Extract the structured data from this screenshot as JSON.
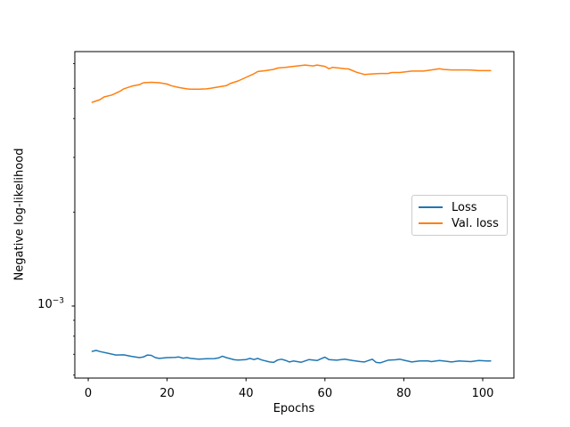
{
  "figure": {
    "background": "#ffffff",
    "spine_color": "#000000",
    "text_color": "#000000",
    "y_tick_label": {
      "base": "10",
      "exponent": "−3"
    }
  },
  "chart_data": {
    "type": "line",
    "title": "",
    "xlabel": "Epochs",
    "ylabel": "Negative log-likelihood",
    "yscale": "log",
    "grid": false,
    "xlim": [
      -3.4,
      107.9
    ],
    "ylim": [
      0.000587,
      0.00656
    ],
    "x_ticks": [
      0,
      20,
      40,
      60,
      80,
      100
    ],
    "y_major_ticks": [
      0.001
    ],
    "y_minor_ticks": [
      0.006,
      0.005,
      0.004,
      0.003,
      0.002,
      0.0009,
      0.0008,
      0.0007,
      0.0006
    ],
    "legend": {
      "position": "center right",
      "entries": [
        "Loss",
        "Val. loss"
      ]
    },
    "series": [
      {
        "name": "Loss",
        "color": "#1f77b4",
        "points": [
          [
            1,
            0.000715
          ],
          [
            2,
            0.00072
          ],
          [
            3,
            0.000714
          ],
          [
            5,
            0.000705
          ],
          [
            7,
            0.000696
          ],
          [
            9,
            0.000697
          ],
          [
            11,
            0.000689
          ],
          [
            13,
            0.000683
          ],
          [
            14,
            0.000686
          ],
          [
            15,
            0.000696
          ],
          [
            16,
            0.000694
          ],
          [
            17,
            0.000683
          ],
          [
            18,
            0.000679
          ],
          [
            20,
            0.000683
          ],
          [
            22,
            0.000684
          ],
          [
            23,
            0.000686
          ],
          [
            24,
            0.00068
          ],
          [
            25,
            0.000683
          ],
          [
            26,
            0.000679
          ],
          [
            28,
            0.000675
          ],
          [
            30,
            0.000677
          ],
          [
            32,
            0.000678
          ],
          [
            33,
            0.000681
          ],
          [
            34,
            0.00069
          ],
          [
            35,
            0.000683
          ],
          [
            37,
            0.000672
          ],
          [
            38,
            0.000671
          ],
          [
            40,
            0.000673
          ],
          [
            41,
            0.000679
          ],
          [
            42,
            0.000673
          ],
          [
            43,
            0.000679
          ],
          [
            44,
            0.000671
          ],
          [
            46,
            0.000661
          ],
          [
            47,
            0.000659
          ],
          [
            48,
            0.000671
          ],
          [
            49,
            0.000675
          ],
          [
            50,
            0.000669
          ],
          [
            51,
            0.000661
          ],
          [
            52,
            0.000666
          ],
          [
            54,
            0.00066
          ],
          [
            56,
            0.000673
          ],
          [
            58,
            0.000668
          ],
          [
            59,
            0.000677
          ],
          [
            60,
            0.000685
          ],
          [
            61,
            0.000673
          ],
          [
            63,
            0.00067
          ],
          [
            65,
            0.000675
          ],
          [
            67,
            0.000668
          ],
          [
            69,
            0.000663
          ],
          [
            70,
            0.000661
          ],
          [
            71,
            0.000668
          ],
          [
            72,
            0.000675
          ],
          [
            73,
            0.000659
          ],
          [
            74,
            0.000657
          ],
          [
            76,
            0.00067
          ],
          [
            78,
            0.000672
          ],
          [
            79,
            0.000675
          ],
          [
            80,
            0.00067
          ],
          [
            82,
            0.000661
          ],
          [
            84,
            0.000666
          ],
          [
            86,
            0.000667
          ],
          [
            87,
            0.000663
          ],
          [
            89,
            0.000668
          ],
          [
            91,
            0.000664
          ],
          [
            92,
            0.000661
          ],
          [
            94,
            0.000666
          ],
          [
            96,
            0.000664
          ],
          [
            97,
            0.000663
          ],
          [
            99,
            0.000668
          ],
          [
            101,
            0.000666
          ],
          [
            102,
            0.000666
          ]
        ]
      },
      {
        "name": "Val. loss",
        "color": "#ff7f0e",
        "points": [
          [
            1,
            0.00451
          ],
          [
            3,
            0.0046
          ],
          [
            4,
            0.00469
          ],
          [
            6,
            0.00476
          ],
          [
            8,
            0.00489
          ],
          [
            9,
            0.00498
          ],
          [
            11,
            0.00508
          ],
          [
            13,
            0.00514
          ],
          [
            14,
            0.00521
          ],
          [
            16,
            0.00523
          ],
          [
            18,
            0.00521
          ],
          [
            20,
            0.00516
          ],
          [
            21,
            0.0051
          ],
          [
            23,
            0.00503
          ],
          [
            25,
            0.00498
          ],
          [
            26,
            0.00497
          ],
          [
            28,
            0.00497
          ],
          [
            30,
            0.00498
          ],
          [
            31,
            0.005
          ],
          [
            33,
            0.00505
          ],
          [
            35,
            0.0051
          ],
          [
            36,
            0.00518
          ],
          [
            38,
            0.00528
          ],
          [
            40,
            0.00542
          ],
          [
            42,
            0.00557
          ],
          [
            43,
            0.00566
          ],
          [
            45,
            0.0057
          ],
          [
            47,
            0.00575
          ],
          [
            48,
            0.00581
          ],
          [
            50,
            0.00584
          ],
          [
            52,
            0.00588
          ],
          [
            54,
            0.00592
          ],
          [
            55,
            0.00594
          ],
          [
            57,
            0.0059
          ],
          [
            58,
            0.00594
          ],
          [
            60,
            0.00588
          ],
          [
            61,
            0.00578
          ],
          [
            62,
            0.00584
          ],
          [
            63,
            0.00582
          ],
          [
            65,
            0.00578
          ],
          [
            66,
            0.00577
          ],
          [
            68,
            0.00563
          ],
          [
            70,
            0.00554
          ],
          [
            72,
            0.00556
          ],
          [
            74,
            0.00558
          ],
          [
            76,
            0.00558
          ],
          [
            77,
            0.00562
          ],
          [
            79,
            0.00562
          ],
          [
            80,
            0.00564
          ],
          [
            82,
            0.00568
          ],
          [
            84,
            0.00568
          ],
          [
            85,
            0.00568
          ],
          [
            87,
            0.00573
          ],
          [
            89,
            0.00578
          ],
          [
            90,
            0.00575
          ],
          [
            92,
            0.00573
          ],
          [
            94,
            0.00573
          ],
          [
            96,
            0.00573
          ],
          [
            97,
            0.00572
          ],
          [
            99,
            0.0057
          ],
          [
            101,
            0.0057
          ],
          [
            102,
            0.0057
          ]
        ]
      }
    ]
  }
}
